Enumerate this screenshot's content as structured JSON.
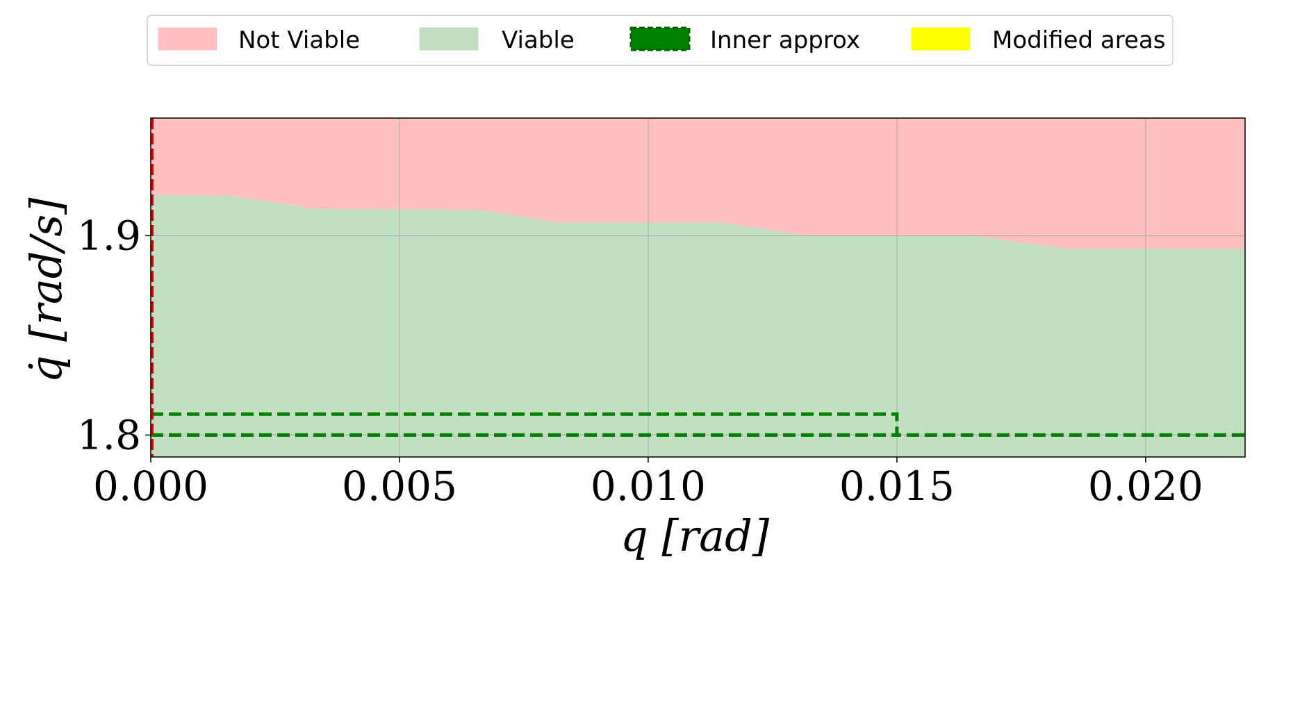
{
  "chart_data": {
    "type": "area",
    "title": "",
    "xlabel": "q [rad]",
    "ylabel": "q̇ [rad/s]",
    "xlim": [
      0.0,
      0.022
    ],
    "ylim": [
      1.789,
      1.959
    ],
    "x_ticks": [
      0.0,
      0.005,
      0.01,
      0.015,
      0.02
    ],
    "x_tick_labels": [
      "0.000",
      "0.005",
      "0.010",
      "0.015",
      "0.020"
    ],
    "y_ticks": [
      1.8,
      1.9
    ],
    "y_tick_labels": [
      "1.8",
      "1.9"
    ],
    "grid": true,
    "legend": {
      "position": "top-center",
      "entries": [
        {
          "label": "Not Viable",
          "color": "#ffbfbf",
          "style": "patch"
        },
        {
          "label": "Viable",
          "color": "#c1dfc1",
          "style": "patch"
        },
        {
          "label": "Inner approx",
          "color": "#008000",
          "style": "dashed-patch"
        },
        {
          "label": "Modified areas",
          "color": "#ffff00",
          "style": "patch"
        }
      ]
    },
    "colors": {
      "not_viable": "#ffbfbf",
      "viable": "#c1dfc1",
      "inner_approx": "#008000",
      "boundary_marker": "#e00000"
    },
    "series": [
      {
        "name": "Viable",
        "type": "area",
        "x": [
          0.0,
          0.0016,
          0.0033,
          0.0066,
          0.0082,
          0.0115,
          0.0132,
          0.0165,
          0.0184,
          0.0218,
          0.022
        ],
        "y": [
          1.9205,
          1.92,
          1.9135,
          1.913,
          1.9065,
          1.9065,
          1.9,
          1.9,
          1.8935,
          1.8935,
          1.893
        ]
      },
      {
        "name": "Inner approx",
        "type": "dashed-line",
        "x": [
          0.0,
          0.015,
          0.015,
          0.022
        ],
        "y": [
          1.8105,
          1.8105,
          1.8,
          1.8
        ]
      }
    ],
    "inner_approx_lower": {
      "x": [
        0.0,
        0.015
      ],
      "y": [
        1.8,
        1.8
      ]
    },
    "vertical_marker_x": 0.0
  }
}
